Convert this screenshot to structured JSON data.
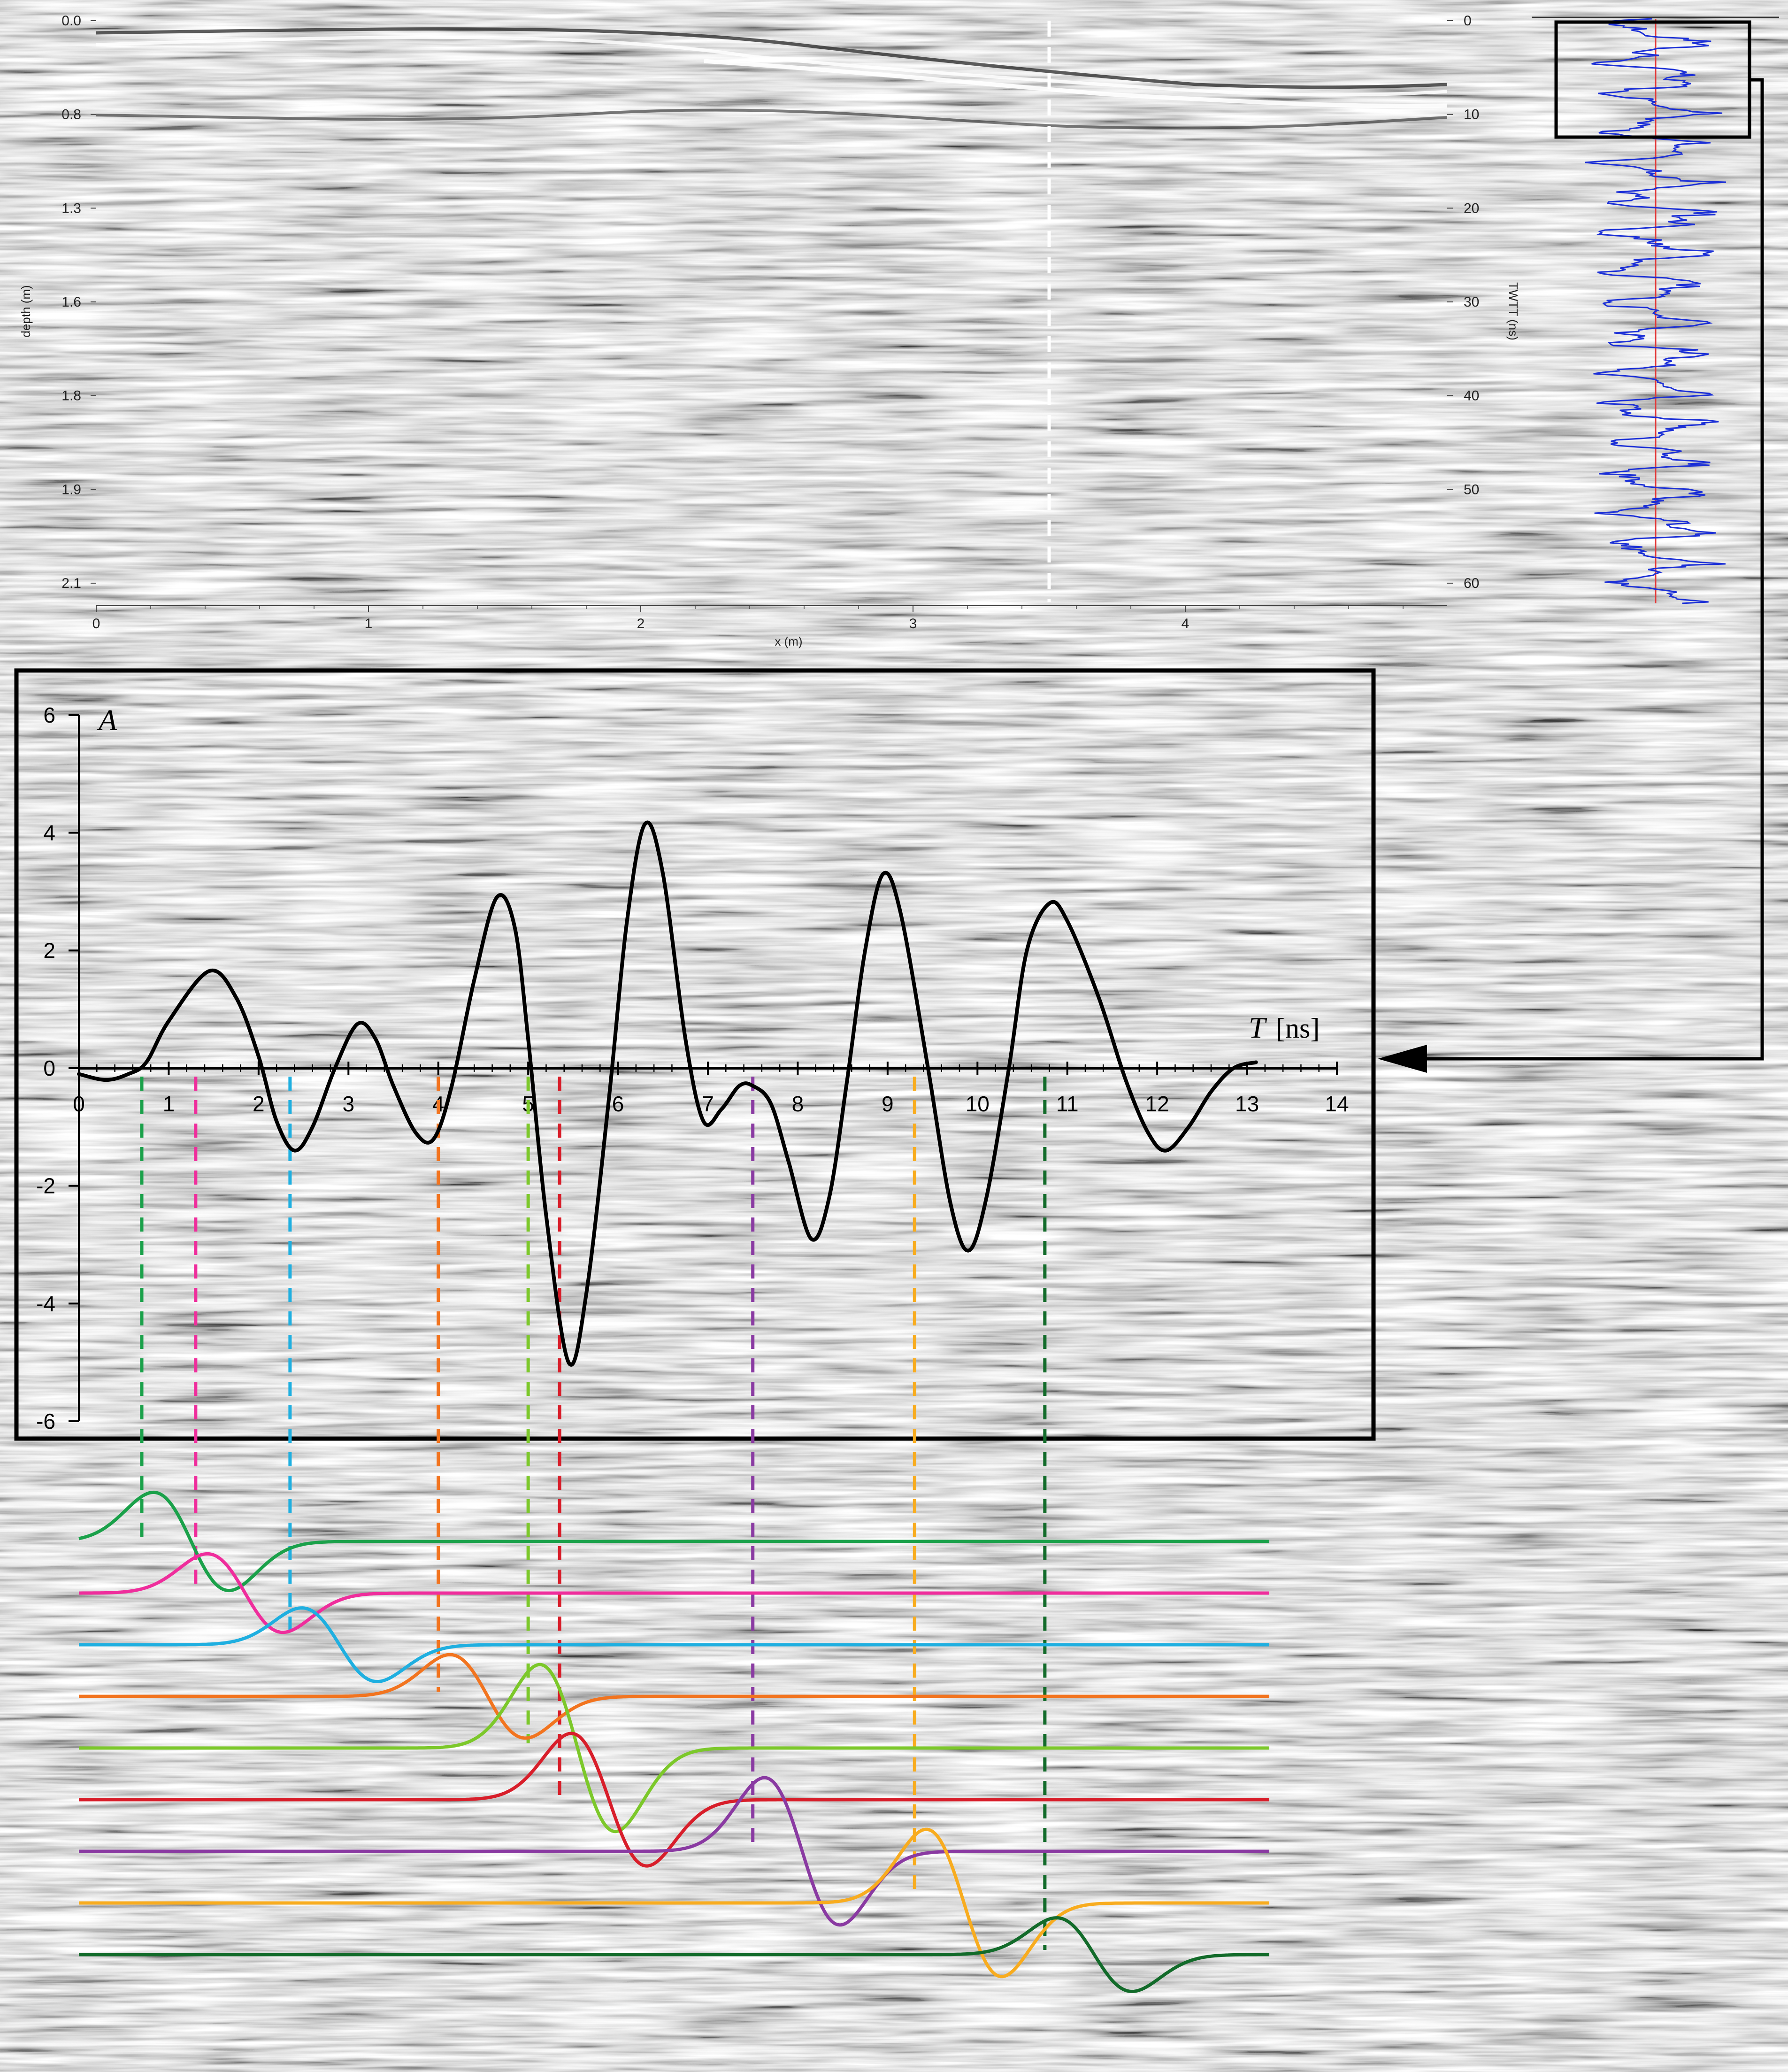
{
  "radargram": {
    "left_ticks": [
      "0.0",
      "0.8",
      "1.3",
      "1.6",
      "1.8",
      "1.9",
      "2.1"
    ],
    "left_label": "depth (m)",
    "right_ticks": [
      "0",
      "10",
      "20",
      "30",
      "40",
      "50",
      "60"
    ],
    "right_label": "TWTT (ns)",
    "bottom_ticks": [
      "0",
      "1",
      "2",
      "3",
      "4"
    ],
    "bottom_label": "x (m)",
    "dashed_line_x": 3.5,
    "twtt_max": 62
  },
  "chart_data": [
    {
      "type": "line",
      "name_in_figure": "trace",
      "y_label": "A",
      "x_label": "T",
      "x_unit": "[ns]",
      "xlim": [
        0,
        14
      ],
      "ylim": [
        -6,
        6
      ],
      "x_ticks": [
        0,
        1,
        2,
        3,
        4,
        5,
        6,
        7,
        8,
        9,
        10,
        11,
        12,
        13,
        14
      ],
      "y_ticks": [
        6,
        4,
        2,
        0,
        -2,
        -4,
        -6
      ],
      "trace": [
        [
          0,
          -0.1
        ],
        [
          0.3,
          -0.2
        ],
        [
          0.55,
          -0.1
        ],
        [
          0.75,
          0.1
        ],
        [
          1.0,
          0.8
        ],
        [
          1.45,
          1.65
        ],
        [
          1.75,
          1.2
        ],
        [
          2.0,
          0.2
        ],
        [
          2.2,
          -0.9
        ],
        [
          2.4,
          -1.4
        ],
        [
          2.6,
          -1.0
        ],
        [
          2.85,
          0.0
        ],
        [
          3.1,
          0.75
        ],
        [
          3.3,
          0.5
        ],
        [
          3.5,
          -0.3
        ],
        [
          3.75,
          -1.1
        ],
        [
          3.95,
          -1.2
        ],
        [
          4.15,
          -0.3
        ],
        [
          4.4,
          1.5
        ],
        [
          4.65,
          2.9
        ],
        [
          4.85,
          2.4
        ],
        [
          5.0,
          0.5
        ],
        [
          5.2,
          -2.5
        ],
        [
          5.45,
          -5.0
        ],
        [
          5.65,
          -3.8
        ],
        [
          5.9,
          -0.5
        ],
        [
          6.1,
          2.5
        ],
        [
          6.3,
          4.15
        ],
        [
          6.5,
          3.3
        ],
        [
          6.75,
          0.5
        ],
        [
          6.95,
          -0.9
        ],
        [
          7.15,
          -0.7
        ],
        [
          7.35,
          -0.3
        ],
        [
          7.5,
          -0.3
        ],
        [
          7.7,
          -0.6
        ],
        [
          7.9,
          -1.6
        ],
        [
          8.15,
          -2.9
        ],
        [
          8.35,
          -2.2
        ],
        [
          8.55,
          -0.2
        ],
        [
          8.75,
          2.0
        ],
        [
          8.95,
          3.3
        ],
        [
          9.15,
          2.6
        ],
        [
          9.45,
          0.0
        ],
        [
          9.7,
          -2.3
        ],
        [
          9.9,
          -3.1
        ],
        [
          10.1,
          -2.2
        ],
        [
          10.35,
          0.0
        ],
        [
          10.55,
          2.0
        ],
        [
          10.8,
          2.8
        ],
        [
          11.0,
          2.5
        ],
        [
          11.35,
          1.2
        ],
        [
          11.65,
          -0.2
        ],
        [
          11.9,
          -1.1
        ],
        [
          12.1,
          -1.4
        ],
        [
          12.35,
          -1.0
        ],
        [
          12.6,
          -0.4
        ],
        [
          12.85,
          0.0
        ],
        [
          13.1,
          0.1
        ]
      ],
      "marker_times": [
        0.7,
        1.3,
        2.35,
        4.0,
        5.0,
        5.35,
        7.5,
        9.3,
        10.75
      ]
    },
    {
      "type": "line",
      "name_in_figure": "wavelets",
      "series": [
        {
          "color": "#1aa14a",
          "t0": 0.7,
          "amp": 1.0
        },
        {
          "color": "#ef2d9c",
          "t0": 1.3,
          "amp": 0.8
        },
        {
          "color": "#1fafe0",
          "t0": 2.35,
          "amp": 0.75
        },
        {
          "color": "#f2741f",
          "t0": 4.0,
          "amp": 0.85
        },
        {
          "color": "#7cc82a",
          "t0": 5.0,
          "amp": 1.7
        },
        {
          "color": "#d81e2a",
          "t0": 5.35,
          "amp": 1.35
        },
        {
          "color": "#8a3aa2",
          "t0": 7.5,
          "amp": 1.5
        },
        {
          "color": "#f8ac1f",
          "t0": 9.3,
          "amp": 1.5
        },
        {
          "color": "#126b2a",
          "t0": 10.75,
          "amp": 0.75
        }
      ]
    }
  ],
  "colors": {
    "wiggle": "#1b2fd6",
    "wiggle_axis": "#e23a3a",
    "frame": "#000000"
  }
}
